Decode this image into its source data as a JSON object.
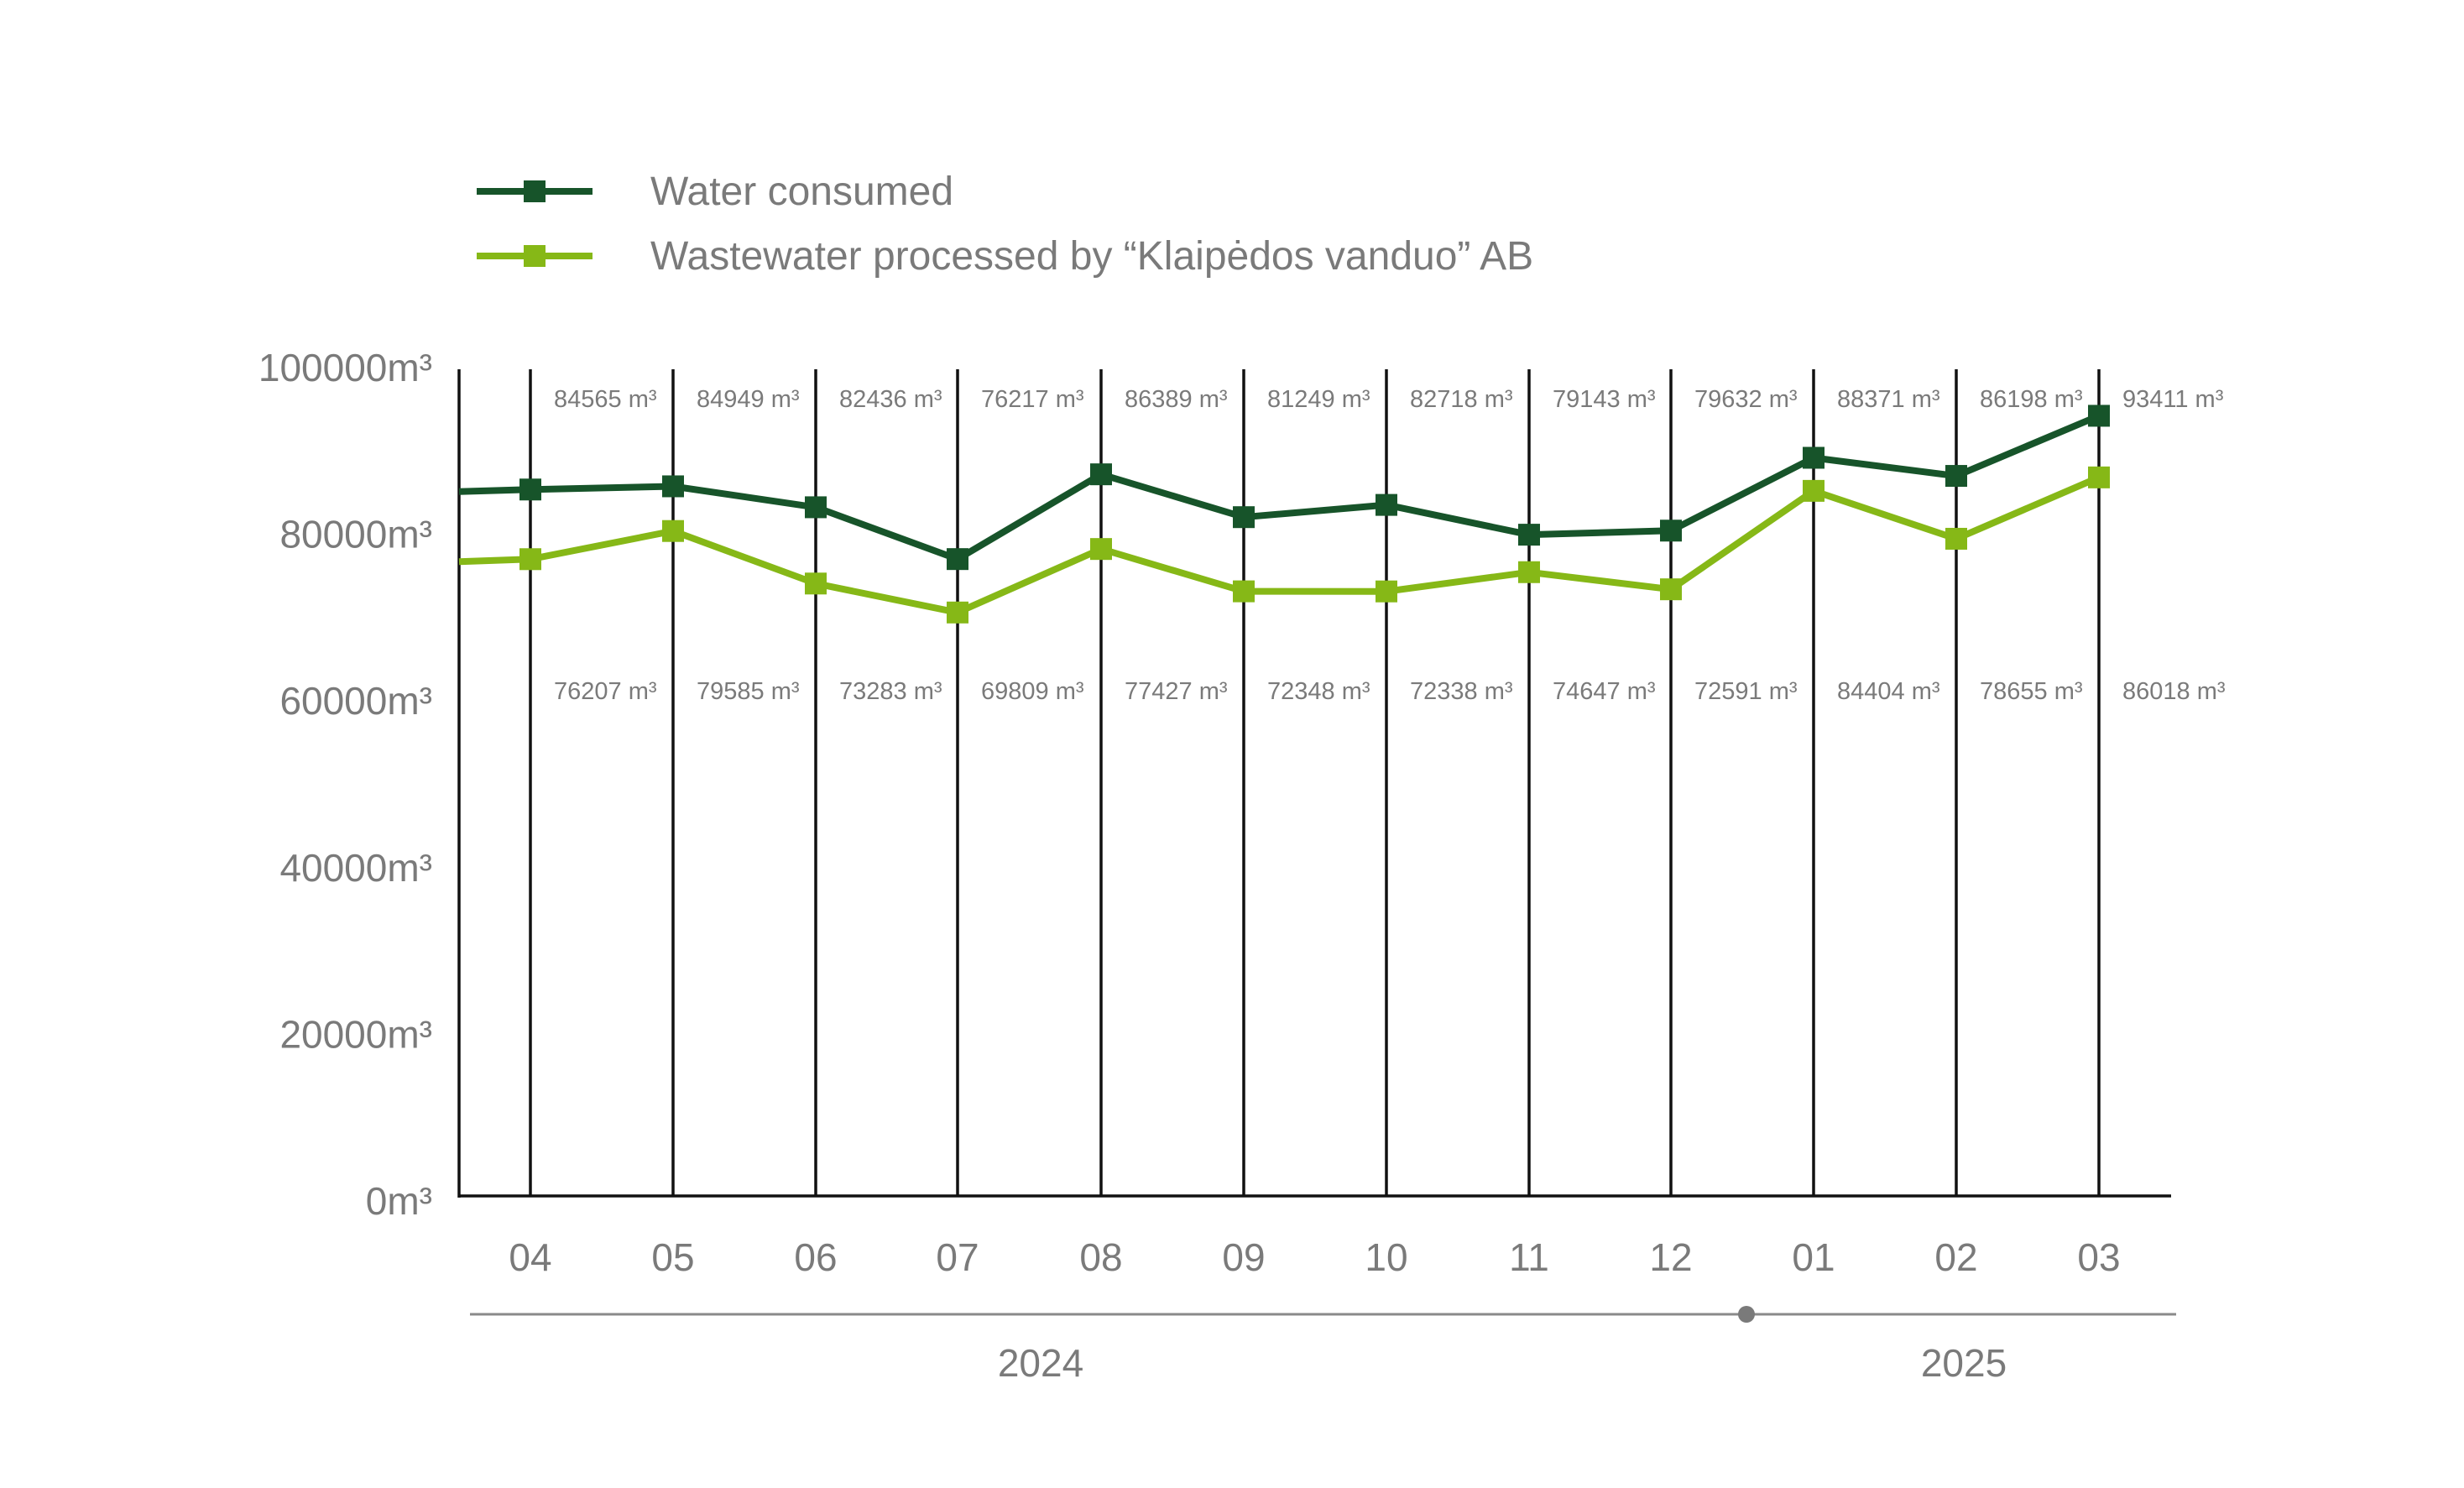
{
  "chart_data": {
    "type": "line",
    "categories": [
      "04",
      "05",
      "06",
      "07",
      "08",
      "09",
      "10",
      "11",
      "12",
      "01",
      "02",
      "03"
    ],
    "series": [
      {
        "name": "Water consumed",
        "color": "#17542a",
        "values": [
          84565,
          84949,
          82436,
          76217,
          86389,
          81249,
          82718,
          79143,
          79632,
          88371,
          86198,
          93411
        ]
      },
      {
        "name": "Wastewater processed by “Klaipėdos vanduo” AB",
        "color": "#86b817",
        "values": [
          76207,
          79585,
          73283,
          69809,
          77427,
          72348,
          72338,
          74647,
          72591,
          84404,
          78655,
          86018
        ]
      }
    ],
    "value_labels_top": [
      "84565 m³",
      "84949 m³",
      "82436 m³",
      "76217 m³",
      "86389 m³",
      "81249 m³",
      "82718 m³",
      "79143 m³",
      "79632 m³",
      "88371 m³",
      "86198 m³",
      "93411 m³"
    ],
    "value_labels_bottom": [
      "76207 m³",
      "79585 m³",
      "73283 m³",
      "69809 m³",
      "77427 m³",
      "72348 m³",
      "72338 m³",
      "74647 m³",
      "72591 m³",
      "84404 m³",
      "78655 m³",
      "86018 m³"
    ],
    "y_ticks": [
      "0m³",
      "20000m³",
      "40000m³",
      "60000m³",
      "80000m³",
      "100000m³"
    ],
    "ylim": [
      0,
      100000
    ],
    "years": [
      {
        "label": "2024",
        "months": "04–12"
      },
      {
        "label": "2025",
        "months": "01–03"
      }
    ],
    "grid": "vertical lines at each month",
    "legend": "top-left"
  }
}
